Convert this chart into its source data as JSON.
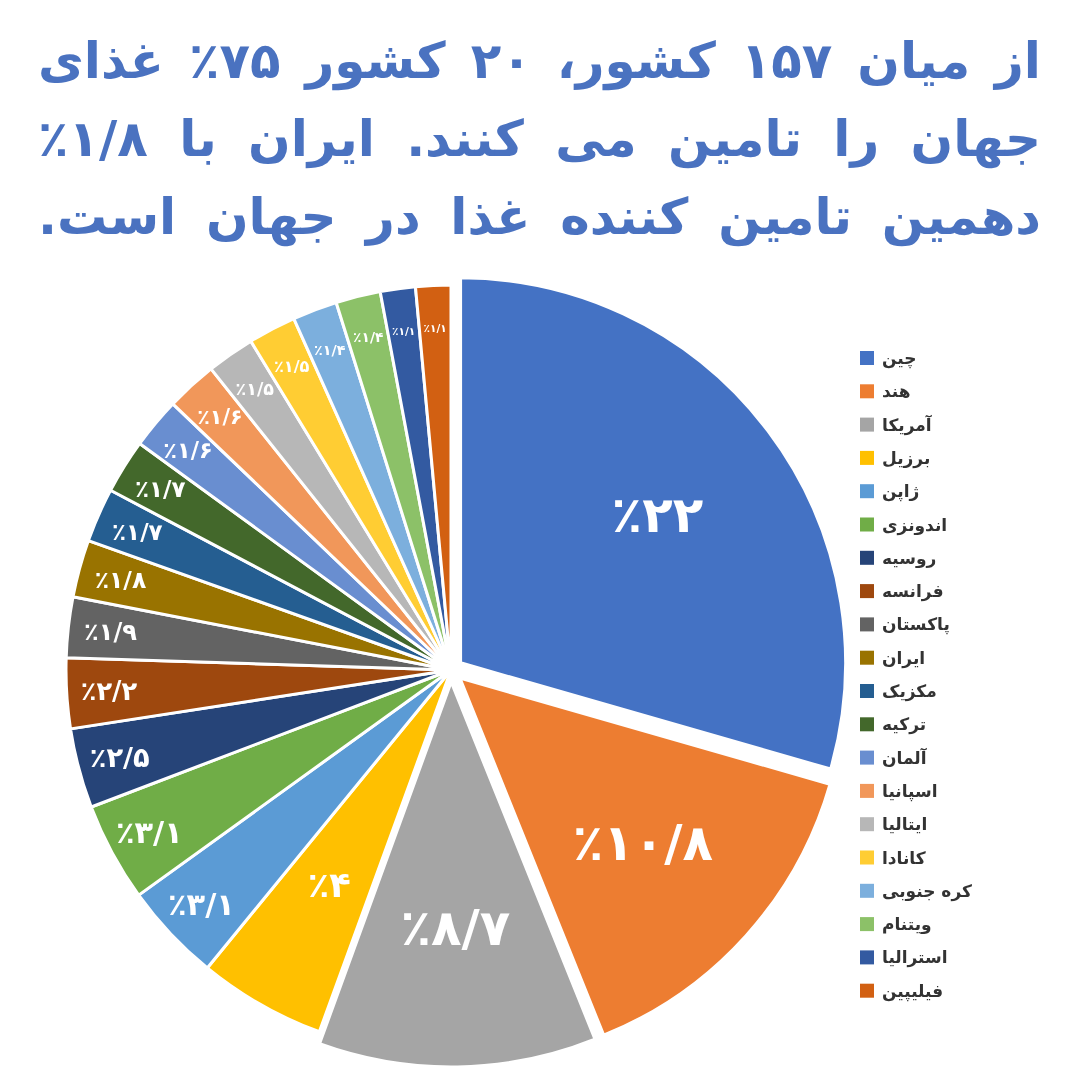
{
  "chart_data": {
    "type": "pie",
    "title": "از میان ۱۵۷ کشور، ۲۰ کشور ۷۵٪ غذای جهان را تامین می کنند. ایران با ۱/۸٪ دهمین تامین کننده غذا در جهان است.",
    "categories": [
      "چین",
      "هند",
      "آمریکا",
      "برزیل",
      "ژاپن",
      "اندونزی",
      "روسیه",
      "فرانسه",
      "پاکستان",
      "ایران",
      "مکزیک",
      "ترکیه",
      "آلمان",
      "اسپانیا",
      "ایتالیا",
      "کانادا",
      "کره جنوبی",
      "ویتنام",
      "استرالیا",
      "فیلیپین"
    ],
    "values": [
      22,
      10.8,
      8.7,
      4,
      3.1,
      3.1,
      2.5,
      2.2,
      1.9,
      1.8,
      1.7,
      1.7,
      1.6,
      1.6,
      1.5,
      1.5,
      1.4,
      1.4,
      1.1,
      1.1
    ],
    "colors": [
      "#4472c4",
      "#ed7d31",
      "#a5a5a5",
      "#ffc000",
      "#5b9bd5",
      "#70ad47",
      "#264478",
      "#9e480e",
      "#636363",
      "#997300",
      "#255e91",
      "#43682b",
      "#698ed0",
      "#f1975a",
      "#b7b7b7",
      "#ffcd33",
      "#7cafdd",
      "#8cc168",
      "#335aa1",
      "#d26012"
    ],
    "value_labels": [
      "٪۲۲",
      "٪۱۰/۸",
      "٪۸/۷",
      "٪۴",
      "٪۳/۱",
      "٪۳/۱",
      "٪۲/۵",
      "٪۲/۲",
      "٪۱/۹",
      "٪۱/۸",
      "٪۱/۷",
      "٪۱/۷",
      "٪۱/۶",
      "٪۱/۶",
      "٪۱/۵",
      "٪۱/۵",
      "٪۱/۴",
      "٪۱/۴",
      "٪۱/۱",
      "٪۱/۱"
    ],
    "legend": "right"
  }
}
